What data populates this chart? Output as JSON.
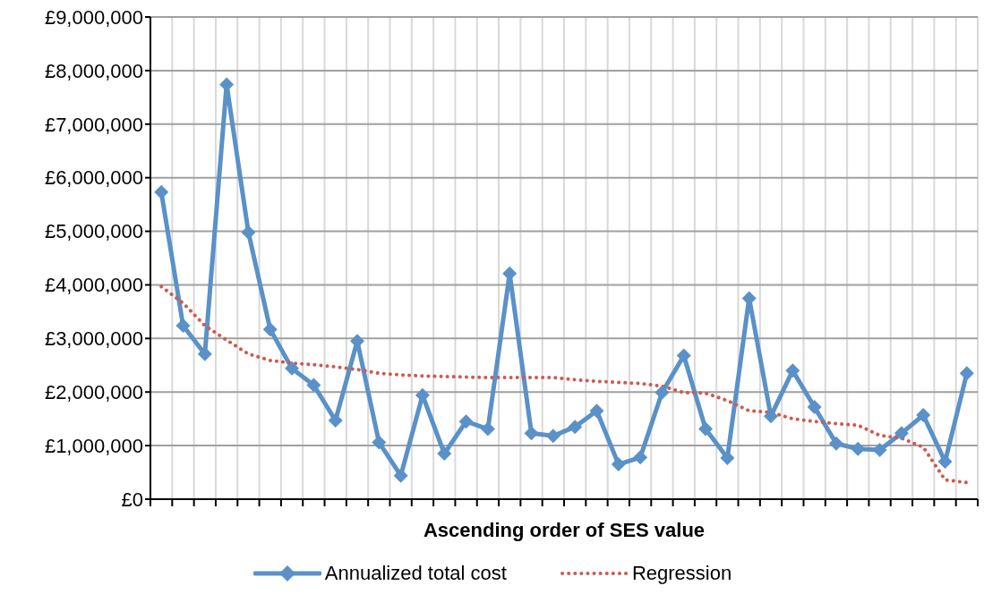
{
  "chart_data": {
    "type": "line",
    "xlabel": "Ascending order of SES value",
    "categories": [
      null,
      null,
      null,
      null,
      null,
      null,
      null,
      null,
      null,
      null,
      null,
      null,
      null,
      null,
      null,
      null,
      null,
      null,
      null,
      null,
      null,
      null,
      null,
      null,
      null,
      null,
      null,
      null,
      null,
      null,
      null,
      null,
      null,
      null,
      null,
      null,
      null,
      null
    ],
    "series": [
      {
        "name": "Annualized total cost",
        "color": "#5a91c8",
        "marker": "diamond",
        "line_style": "solid",
        "values": [
          5730000,
          3240000,
          2710000,
          7740000,
          4980000,
          3170000,
          2440000,
          2130000,
          1470000,
          2950000,
          1060000,
          440000,
          1940000,
          850000,
          1450000,
          1310000,
          4210000,
          1230000,
          1180000,
          1350000,
          1650000,
          650000,
          780000,
          1990000,
          2680000,
          1310000,
          770000,
          3750000,
          1550000,
          2400000,
          1720000,
          1040000,
          940000,
          920000,
          1230000,
          1570000,
          700000,
          2350000
        ]
      },
      {
        "name": "Regression",
        "color": "#cc5b50",
        "marker": "none",
        "line_style": "dotted",
        "values": [
          3970000,
          3660000,
          3240000,
          2970000,
          2710000,
          2590000,
          2540000,
          2510000,
          2470000,
          2420000,
          2350000,
          2320000,
          2300000,
          2290000,
          2280000,
          2270000,
          2270000,
          2270000,
          2270000,
          2230000,
          2200000,
          2180000,
          2160000,
          2110000,
          1990000,
          1980000,
          1840000,
          1650000,
          1620000,
          1500000,
          1450000,
          1410000,
          1380000,
          1190000,
          1140000,
          970000,
          360000,
          310000
        ]
      }
    ],
    "ylim": [
      0,
      9000000
    ],
    "yticks": [
      {
        "value": 0,
        "label": "£0"
      },
      {
        "value": 1000000,
        "label": "£1,000,000"
      },
      {
        "value": 2000000,
        "label": "£2,000,000"
      },
      {
        "value": 3000000,
        "label": "£3,000,000"
      },
      {
        "value": 4000000,
        "label": "£4,000,000"
      },
      {
        "value": 5000000,
        "label": "£5,000,000"
      },
      {
        "value": 6000000,
        "label": "£6,000,000"
      },
      {
        "value": 7000000,
        "label": "£7,000,000"
      },
      {
        "value": 8000000,
        "label": "£8,000,000"
      },
      {
        "value": 9000000,
        "label": "£9,000,000"
      }
    ],
    "grid": true,
    "legend": "bottom"
  }
}
